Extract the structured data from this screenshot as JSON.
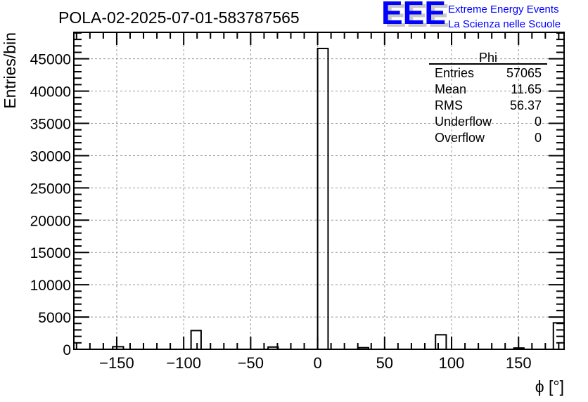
{
  "chart_data": {
    "type": "bar",
    "title": "POLA-02-2025-07-01-583787565",
    "xlabel": "ϕ [°]",
    "ylabel": "Entries/bin",
    "xlim": [
      -182,
      184
    ],
    "ylim": [
      0,
      49100
    ],
    "grid": true,
    "x_ticks": [
      -150,
      -100,
      -50,
      0,
      50,
      100,
      150
    ],
    "x_tick_labels": [
      "−150",
      "−100",
      "−50",
      "0",
      "50",
      "100",
      "150"
    ],
    "y_ticks": [
      0,
      5000,
      10000,
      15000,
      20000,
      25000,
      30000,
      35000,
      40000,
      45000
    ],
    "y_tick_labels": [
      "0",
      "5000",
      "10000",
      "15000",
      "20000",
      "25000",
      "30000",
      "35000",
      "40000",
      "45000"
    ],
    "bins": [
      {
        "x0": -153,
        "x1": -145,
        "value": 400
      },
      {
        "x0": -94.5,
        "x1": -87,
        "value": 2900
      },
      {
        "x0": -37,
        "x1": -29.5,
        "value": 350
      },
      {
        "x0": 0,
        "x1": 7.8,
        "value": 46600
      },
      {
        "x0": 30.4,
        "x1": 38,
        "value": 250
      },
      {
        "x0": 88,
        "x1": 96,
        "value": 2250
      },
      {
        "x0": 146.5,
        "x1": 154,
        "value": 200
      },
      {
        "x0": 176,
        "x1": 184,
        "value": 4100
      }
    ],
    "stats": {
      "name": "Phi",
      "rows": [
        {
          "label": "Entries",
          "value": "57065"
        },
        {
          "label": "Mean",
          "value": "11.65"
        },
        {
          "label": "RMS",
          "value": "56.37"
        },
        {
          "label": "Underflow",
          "value": "0"
        },
        {
          "label": "Overflow",
          "value": "0"
        }
      ]
    }
  },
  "logo": {
    "mark": "EEE",
    "line1": "Extreme Energy Events",
    "line2": "La Scienza nelle Scuole",
    "color": "#0000ff"
  }
}
